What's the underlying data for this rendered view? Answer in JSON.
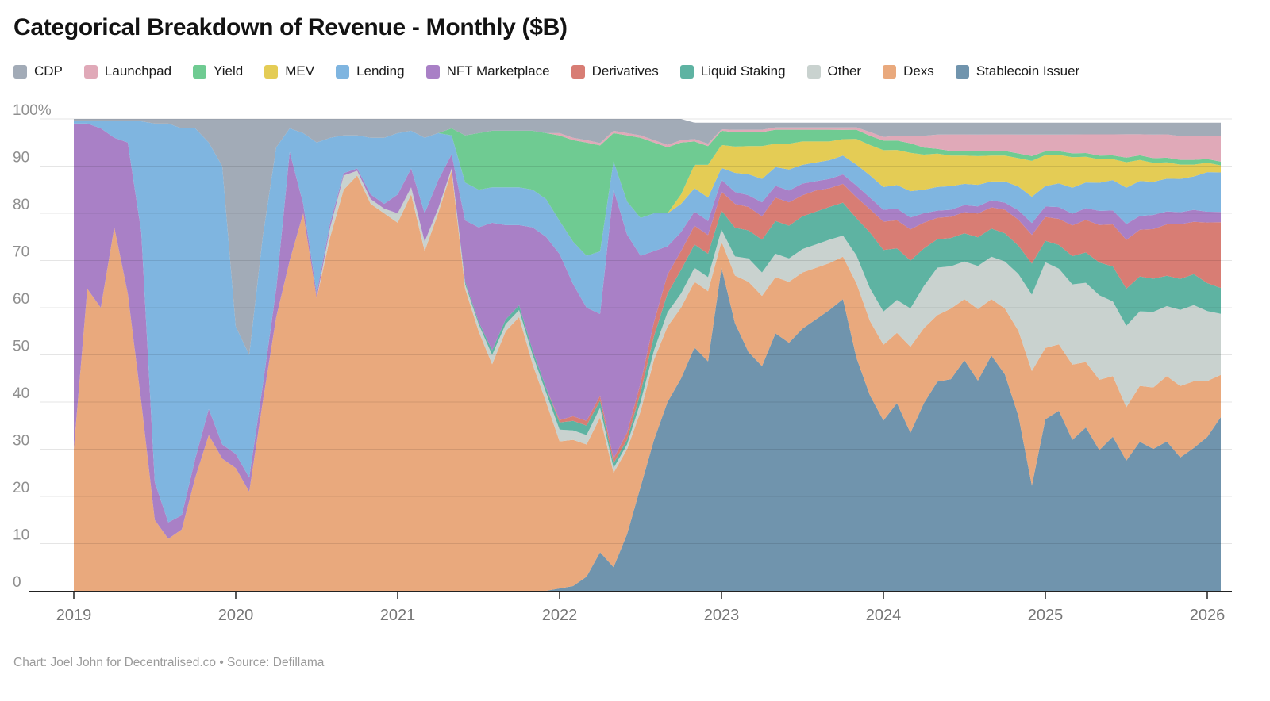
{
  "title": "Categorical Breakdown of Revenue - Monthly ($B)",
  "footer": "Chart: Joel John for Decentralised.co • Source: Defillama",
  "legend": [
    {
      "label": "CDP",
      "color": "#a2abb7"
    },
    {
      "label": "Launchpad",
      "color": "#e0a9b8"
    },
    {
      "label": "Yield",
      "color": "#6fcb92"
    },
    {
      "label": "MEV",
      "color": "#e4cc55"
    },
    {
      "label": "Lending",
      "color": "#7fb5e0"
    },
    {
      "label": "NFT Marketplace",
      "color": "#a980c6"
    },
    {
      "label": "Derivatives",
      "color": "#d87d74"
    },
    {
      "label": "Liquid Staking",
      "color": "#5eb3a2"
    },
    {
      "label": "Other",
      "color": "#c9d2cf"
    },
    {
      "label": "Dexs",
      "color": "#e9a97d"
    },
    {
      "label": "Stablecoin Issuer",
      "color": "#7094ad"
    }
  ],
  "chart_data": {
    "type": "area",
    "stacking": "percent",
    "title": "Categorical Breakdown of Revenue - Monthly ($B)",
    "x_start": "2019-01",
    "x_end": "2026-02",
    "x_interval": "month",
    "x_tick_labels": [
      "2019",
      "2020",
      "2021",
      "2022",
      "2023",
      "2024",
      "2025",
      "2026"
    ],
    "y_tick_labels": [
      "0",
      "10",
      "20",
      "30",
      "40",
      "50",
      "60",
      "70",
      "80",
      "90",
      "100%"
    ],
    "ylim": [
      0,
      100
    ],
    "grid": "horizontal",
    "legend_position": "top",
    "units": "percent share of monthly revenue",
    "series": [
      {
        "name": "Stablecoin Issuer",
        "color": "#7094ad",
        "values": [
          0,
          0,
          0,
          0,
          0,
          0,
          0,
          0,
          0,
          0,
          0,
          0,
          0,
          0,
          0,
          0,
          0,
          0,
          0,
          0,
          0,
          0,
          0,
          0,
          0,
          0,
          0,
          0,
          0,
          0,
          0,
          0,
          0,
          0,
          0,
          0,
          0.5,
          1,
          3,
          8,
          5,
          12,
          22,
          32,
          40,
          45,
          52,
          49,
          68,
          56,
          51,
          48,
          55,
          53,
          56,
          58,
          60,
          62,
          50,
          42,
          36,
          40,
          33,
          40,
          44,
          45,
          49,
          44,
          50,
          46,
          37,
          22,
          36,
          38,
          32,
          35,
          30,
          33,
          28,
          32,
          30,
          32,
          28,
          30,
          33,
          37
        ]
      },
      {
        "name": "Dexs",
        "color": "#e9a97d",
        "values": [
          30,
          64,
          60,
          77,
          63,
          40,
          15,
          11,
          13,
          24,
          33,
          28,
          26,
          21,
          40,
          58,
          70,
          80,
          62,
          75,
          85,
          88,
          82,
          80,
          78,
          84,
          72,
          80,
          89,
          64,
          55,
          48,
          55,
          58,
          48,
          40,
          31,
          31,
          28,
          28,
          20,
          18,
          16,
          17,
          16,
          15,
          14,
          15,
          5.5,
          10,
          15,
          15,
          12,
          13,
          12,
          11,
          10,
          9,
          16,
          16,
          16,
          15,
          18,
          16,
          14,
          15,
          13,
          15,
          12,
          14,
          18,
          24,
          15,
          14,
          16,
          14,
          15,
          13,
          11.5,
          12,
          13,
          14,
          15,
          14,
          12,
          9
        ]
      },
      {
        "name": "Other",
        "color": "#c9d2cf",
        "values": [
          0,
          0,
          0,
          0,
          0,
          0,
          0,
          0,
          0,
          0,
          0,
          0,
          0,
          0,
          0,
          0,
          0,
          0,
          0,
          2,
          3,
          1,
          1,
          1,
          2,
          1.5,
          2,
          1,
          0.5,
          1,
          1.5,
          2,
          1.5,
          1.5,
          2,
          2,
          2.5,
          2,
          2,
          2,
          1,
          1,
          2,
          2,
          3,
          3,
          3,
          3,
          2.5,
          4,
          5,
          5,
          5,
          5,
          5,
          5,
          5,
          4.5,
          6,
          7,
          7,
          7,
          8,
          9,
          10,
          9,
          8,
          9,
          9,
          10,
          12,
          16,
          18,
          16,
          17,
          17,
          18,
          16,
          17.5,
          16,
          16,
          15,
          16,
          16,
          15,
          13
        ]
      },
      {
        "name": "Liquid Staking",
        "color": "#5eb3a2",
        "values": [
          0,
          0,
          0,
          0,
          0,
          0,
          0,
          0,
          0,
          0,
          0,
          0,
          0,
          0,
          0,
          0,
          0,
          0,
          0,
          0,
          0,
          0,
          0,
          0,
          0,
          0,
          0,
          0,
          0,
          0.5,
          0.5,
          1,
          1,
          1,
          1,
          1,
          1.5,
          2,
          2,
          1.5,
          1,
          1,
          2,
          3,
          4,
          5,
          5,
          5,
          4,
          6,
          6,
          7,
          7,
          7,
          7,
          7,
          7,
          7,
          8,
          12,
          13,
          11,
          10,
          8,
          6,
          6,
          6,
          6,
          6,
          6,
          6,
          6.5,
          4.5,
          5,
          6,
          6.5,
          7,
          7.5,
          8,
          7.5,
          7,
          6.5,
          6.5,
          6.5,
          6,
          5.5
        ]
      },
      {
        "name": "Derivatives",
        "color": "#d87d74",
        "values": [
          0,
          0,
          0,
          0,
          0,
          0,
          0,
          0,
          0,
          0,
          0,
          0,
          0,
          0,
          0,
          0,
          0,
          0,
          0,
          0,
          0,
          0,
          0,
          0,
          0,
          0,
          0,
          0,
          0,
          0,
          0,
          0,
          0,
          0,
          0,
          0,
          0.5,
          1,
          1,
          1,
          1,
          1.5,
          2,
          3,
          4,
          4,
          4,
          4,
          4,
          5,
          5,
          5,
          5,
          5,
          4.5,
          4.5,
          4,
          4,
          4.5,
          5,
          6,
          6,
          6.5,
          5.5,
          4.5,
          4.5,
          4.5,
          5,
          4.5,
          5,
          5.5,
          6,
          5,
          5.5,
          6.5,
          7,
          8,
          9,
          10.5,
          10,
          10.5,
          11,
          11.5,
          11,
          13,
          14
        ]
      },
      {
        "name": "NFT Marketplace",
        "color": "#a980c6",
        "values": [
          69,
          35,
          38,
          19,
          32,
          36,
          8,
          3.5,
          3,
          4,
          5.5,
          3,
          3,
          3,
          3.5,
          6,
          23,
          2,
          1,
          1,
          0.5,
          0.5,
          1,
          1,
          4,
          4,
          6,
          6,
          3,
          13,
          20,
          27,
          20,
          17,
          26,
          32,
          35,
          28,
          24,
          17,
          57,
          42,
          27,
          15,
          6,
          4,
          3,
          3,
          2.5,
          2.5,
          2.5,
          3,
          2.5,
          2.5,
          2.5,
          2,
          2,
          2,
          2.5,
          2.5,
          2.5,
          2.5,
          2.5,
          2,
          1.5,
          1.5,
          1.5,
          1.5,
          1.5,
          1.5,
          2,
          2.5,
          2.2,
          2.5,
          2.5,
          2.5,
          3,
          3,
          3.4,
          3,
          3,
          2.8,
          2.5,
          2.5,
          2.3,
          2.2
        ]
      },
      {
        "name": "Lending",
        "color": "#7fb5e0",
        "values": [
          0.5,
          0.5,
          1.5,
          3.5,
          4.5,
          23.5,
          76,
          84.5,
          82,
          70,
          56.5,
          59,
          27,
          26,
          31.5,
          30,
          5,
          15,
          32,
          18,
          8,
          7,
          12,
          14,
          13,
          8,
          16,
          10,
          4,
          8,
          8,
          7.5,
          8,
          8,
          8,
          8,
          7,
          9,
          11,
          13,
          6,
          7,
          8,
          8,
          7,
          6,
          5,
          5,
          2.5,
          4,
          4.5,
          5,
          4,
          4.5,
          4,
          4,
          4,
          4,
          4.5,
          4.8,
          4.8,
          5,
          5.5,
          5,
          5,
          5,
          4.5,
          4.5,
          4,
          4.5,
          5,
          5.5,
          4.3,
          5,
          5.5,
          5.5,
          6,
          6.5,
          7.8,
          7.5,
          7,
          7,
          7,
          7,
          8.5,
          8.4
        ]
      },
      {
        "name": "MEV",
        "color": "#e4cc55",
        "values": [
          0,
          0,
          0,
          0,
          0,
          0,
          0,
          0,
          0,
          0,
          0,
          0,
          0,
          0,
          0,
          0,
          0,
          0,
          0,
          0,
          0,
          0,
          0,
          0,
          0,
          0,
          0,
          0,
          0,
          0,
          0,
          0,
          0,
          0,
          0,
          0,
          0,
          0,
          0,
          0,
          0,
          0,
          0,
          0,
          0,
          2,
          5,
          7,
          4.8,
          5.5,
          6,
          7,
          5,
          5.5,
          5,
          4.5,
          4,
          3.5,
          5.5,
          6.5,
          7.8,
          7.5,
          8,
          7.5,
          7,
          6.5,
          6,
          6,
          5.5,
          5.5,
          6,
          7.5,
          6.5,
          6,
          6.5,
          5.5,
          5,
          4.5,
          5.5,
          4.5,
          4,
          3.5,
          3,
          2.5,
          2,
          1.5
        ]
      },
      {
        "name": "Yield",
        "color": "#6fcb92",
        "values": [
          0,
          0,
          0,
          0,
          0,
          0,
          0,
          0,
          0,
          0,
          0,
          0,
          0,
          0,
          0,
          0,
          0,
          0,
          0,
          0,
          0,
          0,
          0,
          0,
          0,
          0,
          0,
          0,
          1.5,
          10,
          12,
          12,
          12,
          12,
          12.5,
          14,
          18,
          21.5,
          24,
          22,
          6,
          14,
          17,
          15,
          14,
          11,
          5,
          4,
          3,
          3,
          3,
          3,
          3,
          3,
          2.5,
          2.5,
          2.5,
          2,
          2,
          2,
          2,
          2,
          2,
          1.5,
          1,
          1,
          1,
          1,
          1,
          1,
          1,
          1,
          0.8,
          0.8,
          0.8,
          0.8,
          0.8,
          0.8,
          1,
          1,
          1,
          1,
          1,
          1,
          0.8,
          0.8
        ]
      },
      {
        "name": "Launchpad",
        "color": "#e0a9b8",
        "values": [
          0,
          0,
          0,
          0,
          0,
          0,
          0,
          0,
          0,
          0,
          0,
          0,
          0,
          0,
          0,
          0,
          0,
          0,
          0,
          0,
          0,
          0,
          0,
          0,
          0,
          0,
          0,
          0,
          0,
          0,
          0,
          0,
          0,
          0,
          0,
          0,
          0.5,
          0.5,
          0.5,
          0.5,
          0.5,
          0.5,
          0.5,
          0.5,
          0.5,
          0.5,
          0.5,
          0.5,
          0.3,
          0.5,
          0.5,
          0.5,
          0.5,
          0.5,
          0.5,
          0.5,
          0.5,
          0.5,
          0.5,
          0.8,
          0.8,
          1,
          1.5,
          2.5,
          3,
          3.5,
          3.5,
          3.5,
          3.5,
          3.5,
          4,
          4.5,
          3.5,
          3.5,
          4,
          4,
          4.5,
          4.5,
          5,
          4.5,
          5,
          5,
          5,
          5,
          5,
          5.5
        ]
      },
      {
        "name": "CDP",
        "color": "#a2abb7",
        "values": [
          0.5,
          0.5,
          0.5,
          0.5,
          0.5,
          0.5,
          1,
          1,
          2,
          2,
          5,
          10,
          44,
          50,
          25,
          6,
          2,
          3,
          5,
          4,
          3.5,
          3.5,
          4,
          4,
          3,
          2.5,
          4,
          3,
          2,
          3.5,
          3,
          2.5,
          2.5,
          2.5,
          2.5,
          3,
          3,
          4,
          4.5,
          5,
          2.5,
          3,
          3.5,
          4.5,
          5.5,
          4.5,
          3.5,
          4.5,
          1.4,
          1.5,
          1.5,
          1.5,
          1,
          1,
          1,
          1,
          1,
          1,
          1,
          2,
          3,
          2.8,
          2.8,
          2.8,
          2.5,
          2.5,
          2.5,
          2.5,
          2.5,
          2.5,
          2.5,
          2.5,
          2.5,
          2.5,
          2.5,
          2.5,
          2.5,
          2.5,
          2.5,
          2.5,
          2.5,
          2.5,
          2.8,
          2.8,
          2.8,
          2.8
        ]
      }
    ]
  }
}
